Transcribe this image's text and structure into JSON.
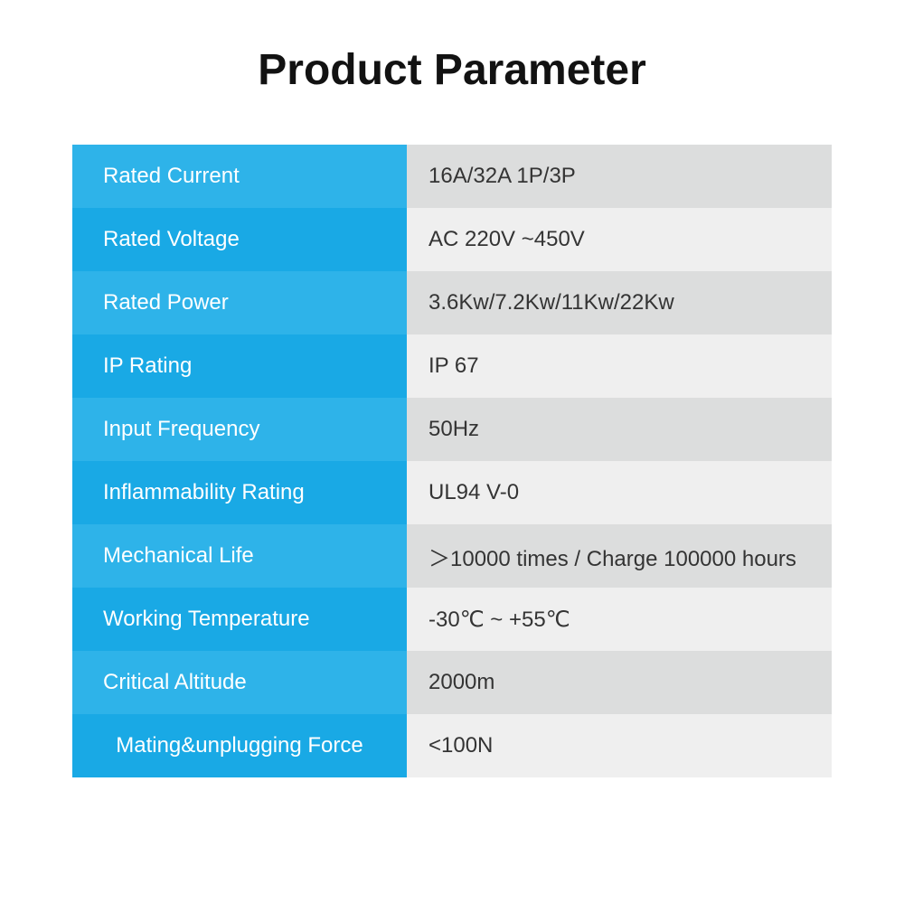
{
  "title": "Product Parameter",
  "table": {
    "label_colors": {
      "a": "#2eb3e9",
      "b": "#19a9e5"
    },
    "value_colors": {
      "a": "#dcdddd",
      "b": "#efefef"
    },
    "label_text_color": "#ffffff",
    "value_text_color": "#343434",
    "rows": [
      {
        "label": "Rated Current",
        "value": "16A/32A 1P/3P"
      },
      {
        "label": "Rated Voltage",
        "value": "AC 220V ~450V"
      },
      {
        "label": "Rated Power",
        "value": "3.6Kw/7.2Kw/11Kw/22Kw"
      },
      {
        "label": "IP Rating",
        "value": "IP 67"
      },
      {
        "label": "Input Frequency",
        "value": "50Hz"
      },
      {
        "label": "Inflammability Rating",
        "value": "UL94 V-0"
      },
      {
        "label": "Mechanical Life",
        "value": "＞10000 times / Charge 100000 hours"
      },
      {
        "label": "Working Temperature",
        "value": "-30℃ ~ +55℃"
      },
      {
        "label": "Critical Altitude",
        "value": "2000m"
      },
      {
        "label": "Mating&unplugging Force",
        "value": "<100N",
        "label_center": true
      }
    ]
  }
}
